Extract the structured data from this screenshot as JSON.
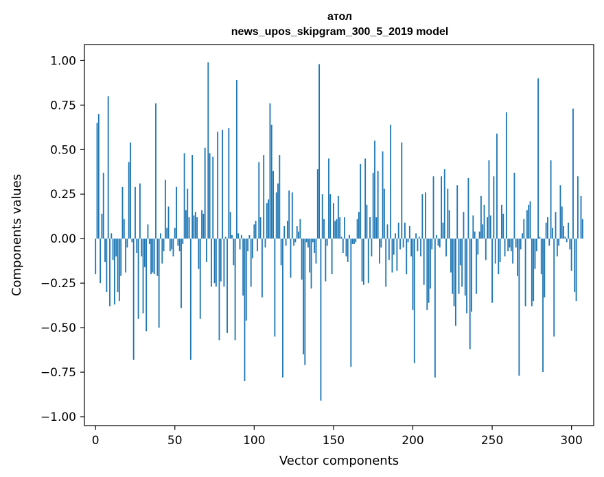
{
  "chart_data": {
    "type": "bar",
    "title": "атол",
    "subtitle": "news_upos_skipgram_300_5_2019 model",
    "xlabel": "Vector components",
    "ylabel": "Components values",
    "xlim": [
      -7,
      314
    ],
    "ylim": [
      -1.05,
      1.09
    ],
    "xticks": [
      0,
      50,
      100,
      150,
      200,
      250,
      300
    ],
    "yticks": [
      -1.0,
      -0.75,
      -0.5,
      -0.25,
      0.0,
      0.25,
      0.5,
      0.75,
      1.0
    ],
    "ytick_labels": [
      "−1.00",
      "−0.75",
      "−0.50",
      "−0.25",
      "0.00",
      "0.25",
      "0.50",
      "0.75",
      "1.00"
    ],
    "bar_color": "#1f77b4",
    "grid": false,
    "values": [
      -0.2,
      0.65,
      0.7,
      -0.25,
      0.14,
      0.37,
      -0.13,
      -0.3,
      0.8,
      -0.38,
      0.03,
      -0.12,
      -0.37,
      -0.1,
      -0.3,
      -0.35,
      -0.21,
      0.29,
      0.11,
      -0.19,
      -0.05,
      0.43,
      0.54,
      -0.02,
      -0.68,
      0.29,
      -0.08,
      -0.45,
      0.31,
      -0.1,
      -0.42,
      -0.16,
      -0.52,
      0.08,
      -0.03,
      -0.2,
      -0.19,
      -0.2,
      0.76,
      -0.21,
      -0.5,
      0.03,
      -0.14,
      -0.07,
      0.33,
      0.06,
      0.18,
      -0.07,
      -0.06,
      -0.1,
      0.06,
      0.29,
      -0.04,
      -0.07,
      -0.39,
      -0.03,
      0.48,
      0.16,
      0.28,
      0.12,
      -0.68,
      0.47,
      0.13,
      0.15,
      0.12,
      -0.17,
      -0.45,
      0.16,
      0.14,
      0.51,
      -0.13,
      0.99,
      0.48,
      -0.27,
      0.46,
      -0.25,
      -0.27,
      0.6,
      -0.57,
      -0.24,
      0.61,
      -0.27,
      0.01,
      -0.53,
      0.62,
      0.15,
      0.02,
      -0.15,
      -0.57,
      0.89,
      0.03,
      -0.06,
      0.02,
      -0.32,
      -0.8,
      -0.46,
      -0.07,
      0.02,
      -0.27,
      -0.11,
      0.08,
      0.1,
      -0.07,
      0.43,
      0.12,
      -0.33,
      0.47,
      -0.05,
      0.2,
      0.22,
      0.76,
      0.64,
      0.38,
      -0.55,
      0.26,
      0.31,
      0.47,
      -0.15,
      -0.78,
      0.07,
      -0.04,
      0.1,
      0.27,
      -0.22,
      0.26,
      -0.04,
      -0.02,
      0.07,
      0.04,
      0.11,
      -0.23,
      -0.65,
      -0.71,
      -0.02,
      -0.05,
      -0.19,
      -0.28,
      -0.02,
      -0.08,
      -0.14,
      0.39,
      0.98,
      -0.91,
      0.25,
      0.11,
      -0.24,
      -0.04,
      0.45,
      0.25,
      -0.2,
      0.2,
      0.1,
      0.11,
      0.24,
      0.12,
      0.01,
      -0.08,
      0.12,
      -0.1,
      -0.13,
      0.02,
      -0.72,
      -0.03,
      -0.03,
      -0.02,
      0.11,
      0.15,
      0.42,
      -0.24,
      -0.26,
      0.45,
      0.19,
      -0.25,
      0.12,
      -0.1,
      0.37,
      0.55,
      0.12,
      0.38,
      -0.14,
      -0.05,
      0.49,
      0.28,
      -0.27,
      0.08,
      -0.12,
      0.64,
      -0.19,
      -0.09,
      0.03,
      -0.18,
      0.09,
      -0.06,
      0.54,
      -0.05,
      0.09,
      -0.2,
      -0.02,
      0.07,
      -0.1,
      -0.4,
      -0.7,
      0.03,
      -0.07,
      0.01,
      -0.1,
      0.25,
      -0.26,
      0.26,
      -0.4,
      -0.36,
      -0.28,
      -0.06,
      0.35,
      -0.78,
      0.02,
      -0.04,
      -0.05,
      0.35,
      0.09,
      0.39,
      -0.1,
      0.28,
      0.16,
      -0.19,
      -0.31,
      -0.38,
      -0.49,
      0.3,
      -0.31,
      -0.15,
      -0.27,
      0.15,
      -0.32,
      -0.42,
      0.34,
      -0.62,
      -0.41,
      0.13,
      0.04,
      -0.31,
      -0.09,
      0.04,
      0.24,
      0.08,
      0.19,
      -0.12,
      0.12,
      0.44,
      0.13,
      -0.36,
      0.35,
      -0.14,
      0.59,
      -0.2,
      -0.13,
      0.19,
      0.14,
      -0.1,
      0.71,
      -0.07,
      -0.05,
      -0.07,
      -0.14,
      0.37,
      -0.05,
      -0.21,
      -0.77,
      -0.06,
      0.03,
      0.11,
      -0.38,
      0.16,
      0.19,
      0.21,
      -0.38,
      -0.35,
      -0.17,
      -0.07,
      0.9,
      0.01,
      -0.2,
      -0.75,
      -0.33,
      0.09,
      0.12,
      -0.04,
      0.44,
      0.06,
      -0.55,
      0.15,
      -0.1,
      -0.04,
      0.3,
      0.18,
      0.07,
      0.01,
      -0.02,
      0.09,
      -0.06,
      -0.18,
      0.73,
      -0.3,
      -0.35,
      0.35,
      0.0,
      0.24,
      0.11
    ]
  }
}
